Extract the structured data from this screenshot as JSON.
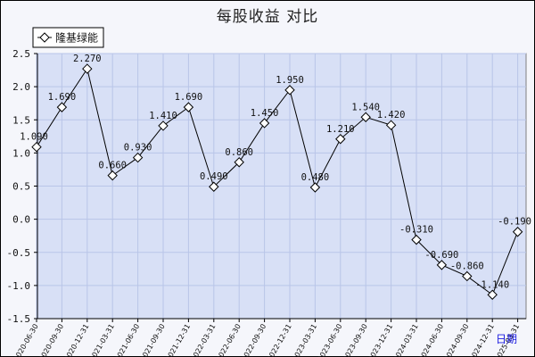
{
  "chart_data": {
    "type": "line",
    "title": "每股收益  对比",
    "xlabel": "日期",
    "ylabel": "",
    "ylim": [
      -1.5,
      2.5
    ],
    "yticks": [
      "2.5",
      "2.0",
      "1.5",
      "1.0",
      "0.5",
      "0.0",
      "-0.5",
      "-1.0",
      "-1.5"
    ],
    "grid": true,
    "legend_position": "top-left",
    "categories": [
      "2020-06-30",
      "2020-09-30",
      "2020-12-31",
      "2021-03-31",
      "2021-06-30",
      "2021-09-30",
      "2021-12-31",
      "2022-03-31",
      "2022-06-30",
      "2022-09-30",
      "2022-12-31",
      "2023-03-31",
      "2023-06-30",
      "2023-09-30",
      "2023-12-31",
      "2024-03-31",
      "2024-06-30",
      "2024-09-30",
      "2024-12-31",
      "2025-03-31"
    ],
    "series": [
      {
        "name": "隆基绿能",
        "color": "#000000",
        "values": [
          1.09,
          1.69,
          2.27,
          0.66,
          0.93,
          1.41,
          1.69,
          0.49,
          0.86,
          1.45,
          1.95,
          0.48,
          1.21,
          1.54,
          1.42,
          -0.31,
          -0.69,
          -0.86,
          -1.14,
          -0.19
        ],
        "labels": [
          "1.090",
          "1.690",
          "2.270",
          "0.660",
          "0.930",
          "1.410",
          "1.690",
          "0.490",
          "0.860",
          "1.450",
          "1.950",
          "0.480",
          "1.210",
          "1.540",
          "1.420",
          "-0.310",
          "-0.690",
          "-0.860",
          "-1.140",
          "-0.190"
        ]
      }
    ],
    "plot_background": "#d8e0f6",
    "grid_color": "#b9c5e8"
  }
}
